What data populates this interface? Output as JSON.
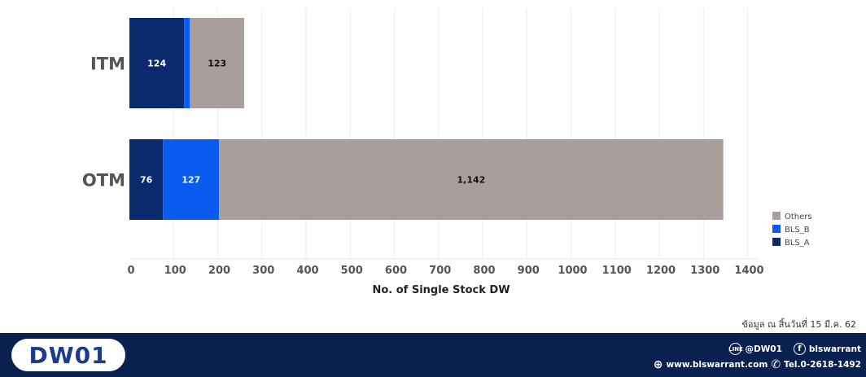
{
  "chart_data": {
    "type": "bar",
    "orientation": "horizontal",
    "stacked": true,
    "categories": [
      "ITM",
      "OTM"
    ],
    "series": [
      {
        "name": "BLS_A",
        "values": [
          124,
          76
        ],
        "color": "#0b2a6e",
        "labels": [
          "124",
          "76"
        ],
        "label_color": "#ffffff"
      },
      {
        "name": "BLS_B",
        "values": [
          13,
          127
        ],
        "color": "#0a5cf0",
        "labels": [
          "",
          "127"
        ],
        "label_color": "#ffffff"
      },
      {
        "name": "Others",
        "values": [
          123,
          1142
        ],
        "color": "#a89f9c",
        "labels": [
          "123",
          "1,142"
        ],
        "label_color": "#111111"
      }
    ],
    "legend_order": [
      "Others",
      "BLS_B",
      "BLS_A"
    ],
    "xticks": [
      0,
      100,
      200,
      300,
      400,
      500,
      600,
      700,
      800,
      900,
      1000,
      1100,
      1200,
      1300,
      1400
    ],
    "xlim": [
      0,
      1400
    ],
    "xlabel": "No. of Single Stock DW",
    "grid": true,
    "legend_position": "right"
  },
  "note": "ข้อมูล ณ สิ้นวันที่ 15 มี.ค. 62",
  "footer": {
    "logo": "DW01",
    "line_icon_text": "LINE",
    "line_id": "@DW01",
    "facebook_icon_text": "f",
    "facebook": "blswarrant",
    "globe_icon": "⊕",
    "website": "www.blswarrant.com",
    "phone_icon": "✆",
    "phone": "Tel.0-2618-1492"
  }
}
